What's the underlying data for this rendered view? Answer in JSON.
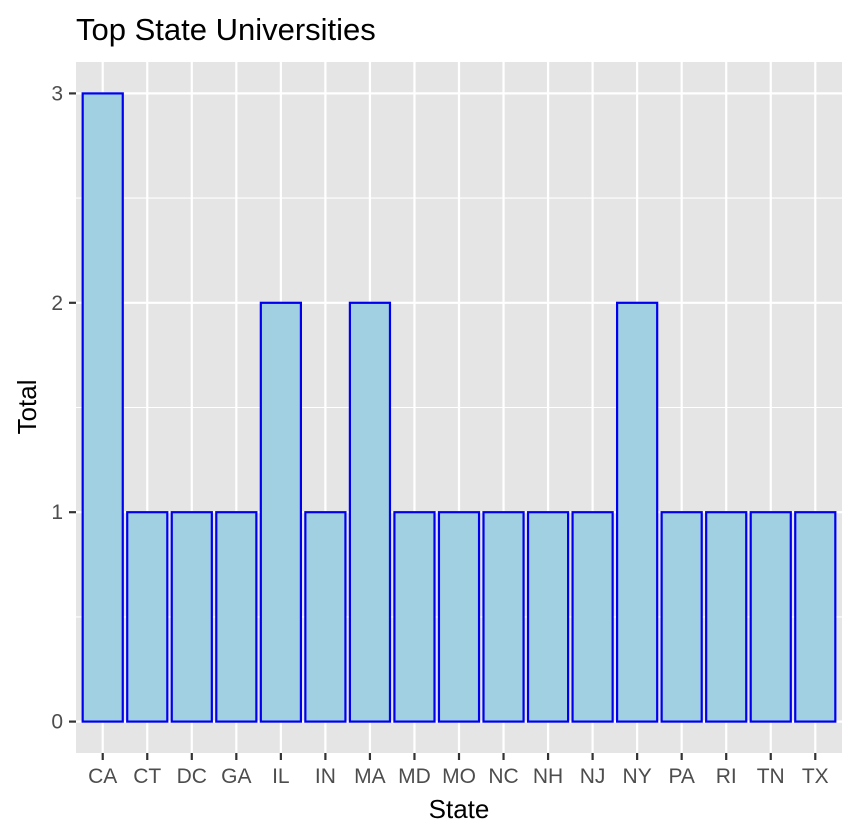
{
  "chart_data": {
    "type": "bar",
    "title": "Top State Universities",
    "xlabel": "State",
    "ylabel": "Total",
    "categories": [
      "CA",
      "CT",
      "DC",
      "GA",
      "IL",
      "IN",
      "MA",
      "MD",
      "MO",
      "NC",
      "NH",
      "NJ",
      "NY",
      "PA",
      "RI",
      "TN",
      "TX"
    ],
    "values": [
      3,
      1,
      1,
      1,
      2,
      1,
      2,
      1,
      1,
      1,
      1,
      1,
      2,
      1,
      1,
      1,
      1
    ],
    "ylim": [
      -0.15,
      3.15
    ],
    "yticks": [
      0,
      1,
      2,
      3
    ],
    "grid": true,
    "legend": "none",
    "colors": {
      "bar_fill": "#a1d0e2",
      "bar_stroke": "#0000ee",
      "panel_bg": "#e5e5e5",
      "grid": "#ffffff"
    }
  }
}
